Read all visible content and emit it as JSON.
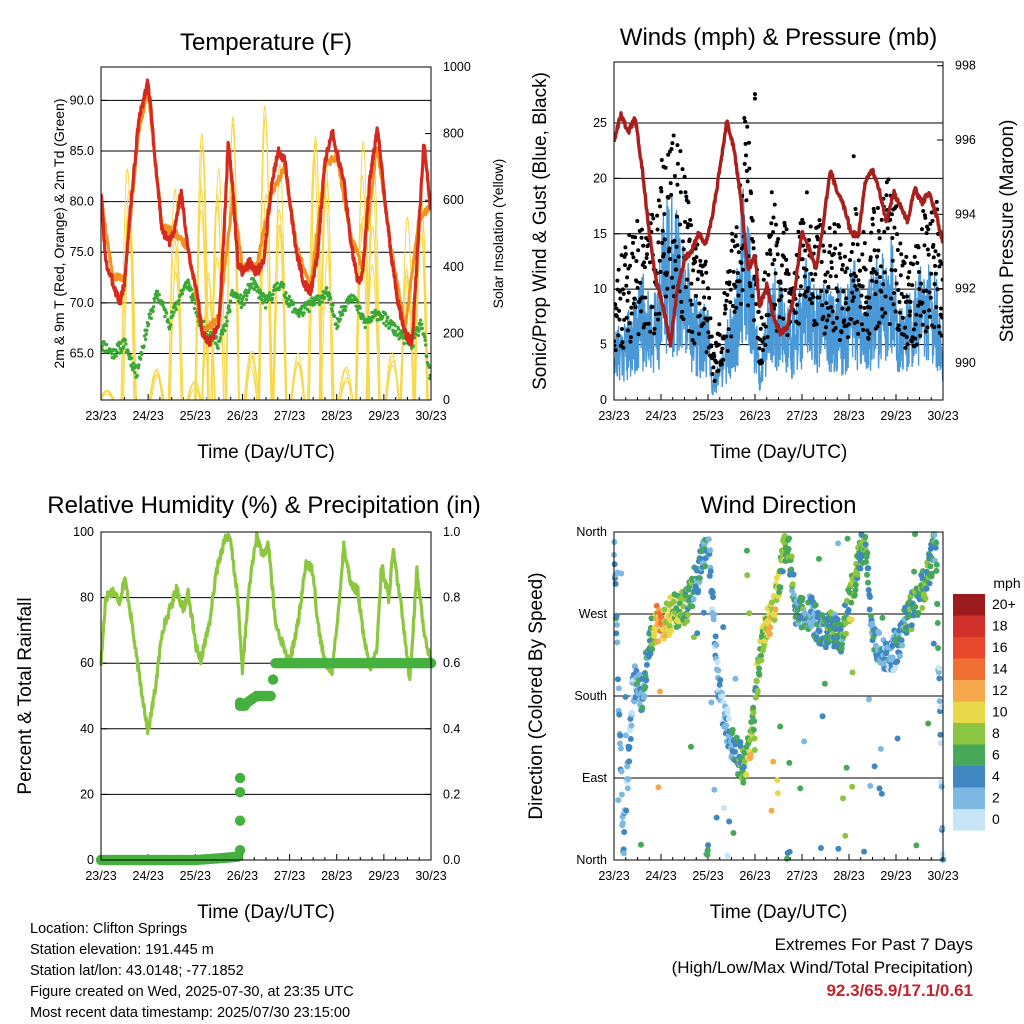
{
  "days": [
    "23/23",
    "24/23",
    "25/23",
    "26/23",
    "27/23",
    "28/23",
    "29/23",
    "30/23"
  ],
  "chart_data": [
    {
      "type": "line",
      "title": "Temperature (F)",
      "xlabel": "Time (Day/UTC)",
      "ylabel": "2m & 9m T (Red, Orange) & 2m Td (Green)",
      "y2label": "Solar Insolation (Yellow)",
      "ylim": [
        60.4,
        93.3
      ],
      "yticks": [
        "65.0",
        "70.0",
        "75.0",
        "80.0",
        "85.0",
        "90.0"
      ],
      "y2lim": [
        0,
        1000
      ],
      "y2ticks": [
        "0",
        "200",
        "400",
        "600",
        "800",
        "1000"
      ],
      "series": [
        {
          "name": "2m T",
          "color": "#d62a1e",
          "x": [
            0,
            0.1,
            0.25,
            0.4,
            0.5,
            0.6,
            0.8,
            1.0,
            1.15,
            1.3,
            1.45,
            1.55,
            1.7,
            1.85,
            2.0,
            2.15,
            2.3,
            2.5,
            2.6,
            2.7,
            2.8,
            2.9,
            3.0,
            3.15,
            3.3,
            3.45,
            3.6,
            3.75,
            3.9,
            4.0,
            4.15,
            4.3,
            4.45,
            4.6,
            4.75,
            4.9,
            5.0,
            5.15,
            5.3,
            5.45,
            5.55,
            5.7,
            5.85,
            5.9,
            6.0,
            6.15,
            6.3,
            6.45,
            6.6,
            6.75,
            6.85,
            7.0
          ],
          "y": [
            81,
            74,
            72,
            70,
            72,
            78,
            88,
            92,
            84,
            77,
            76,
            77,
            81,
            75,
            72,
            67,
            66,
            68,
            76,
            86,
            81,
            74,
            73,
            74,
            73,
            74,
            81,
            85,
            84,
            80,
            75,
            72,
            71,
            75,
            84,
            87,
            85,
            82,
            76,
            72,
            73,
            82,
            87,
            86,
            81,
            75,
            70,
            67,
            66,
            78,
            86,
            79
          ]
        },
        {
          "name": "9m T",
          "color": "#f19322",
          "x": [
            0,
            0.25,
            0.5,
            0.8,
            1.0,
            1.3,
            1.55,
            1.85,
            2.15,
            2.5,
            2.8,
            3.0,
            3.3,
            3.6,
            3.9,
            4.15,
            4.45,
            4.75,
            5.0,
            5.3,
            5.55,
            5.85,
            6.15,
            6.45,
            6.75,
            7.0
          ],
          "y": [
            80.5,
            72.5,
            72.5,
            87,
            91,
            77.5,
            77,
            75.5,
            67,
            68.5,
            80.5,
            73.5,
            73.5,
            80.5,
            83.5,
            75.5,
            71.5,
            83.5,
            84.5,
            76.5,
            73.5,
            85.5,
            75.5,
            67.5,
            78.5,
            79.5
          ]
        },
        {
          "name": "2m Td",
          "color": "#3aa835",
          "x": [
            0,
            0.25,
            0.5,
            0.75,
            1.0,
            1.2,
            1.45,
            1.7,
            1.85,
            2.1,
            2.3,
            2.5,
            2.65,
            2.8,
            3.0,
            3.2,
            3.5,
            3.8,
            4.0,
            4.2,
            4.5,
            4.8,
            5.0,
            5.3,
            5.6,
            5.9,
            6.1,
            6.3,
            6.6,
            6.8,
            7.0
          ],
          "y": [
            66,
            65,
            66,
            63,
            68,
            71,
            68,
            71,
            72,
            68,
            67,
            66,
            68,
            71,
            70,
            72,
            70,
            72,
            70,
            69,
            70,
            71,
            68,
            71,
            68,
            69,
            68,
            67,
            66,
            68,
            62
          ]
        },
        {
          "name": "Solar Insolation",
          "color": "#f7d84a",
          "axis": "y2",
          "x": [
            0.1,
            0.55,
            1.15,
            1.55,
            1.95,
            2.1,
            2.25,
            2.45,
            2.75,
            3.15,
            3.45,
            3.75,
            4.15,
            4.5,
            4.75,
            5.15,
            5.5,
            5.75,
            6.15,
            6.45,
            6.75
          ],
          "y": [
            30,
            700,
            100,
            640,
            60,
            920,
            380,
            780,
            900,
            150,
            960,
            820,
            160,
            860,
            700,
            100,
            840,
            730,
            180,
            620,
            800
          ]
        }
      ]
    },
    {
      "type": "scatter",
      "title": "Winds (mph) & Pressure (mb)",
      "xlabel": "Time (Day/UTC)",
      "ylabel": "Sonic/Prop Wind & Gust (Blue, Black)",
      "y2label": "Station Pressure (Maroon)",
      "ylim": [
        0,
        30.5
      ],
      "yticks": [
        "0",
        "5",
        "10",
        "15",
        "20",
        "25"
      ],
      "y2lim": [
        989.0,
        998.1
      ],
      "y2ticks": [
        "990",
        "992",
        "994",
        "996",
        "998"
      ],
      "series": [
        {
          "name": "Wind",
          "color": "#4a98d6",
          "x": [
            0,
            0.3,
            0.6,
            0.9,
            1.1,
            1.4,
            1.7,
            2.0,
            2.1,
            2.3,
            2.55,
            2.75,
            2.9,
            3.1,
            3.35,
            3.6,
            3.85,
            4.1,
            4.35,
            4.6,
            4.9,
            5.1,
            5.35,
            5.6,
            5.9,
            6.1,
            6.35,
            6.6,
            6.85,
            7.0
          ],
          "y": [
            4,
            5,
            7,
            6,
            12,
            10,
            6,
            5,
            1,
            3,
            6,
            12,
            10,
            2,
            8,
            6,
            5,
            8,
            6,
            7,
            6,
            8,
            6,
            8,
            9,
            6,
            6,
            8,
            7,
            3
          ]
        },
        {
          "name": "Gust",
          "color": "#000000",
          "x": [
            0,
            0.3,
            0.6,
            0.9,
            1.1,
            1.4,
            1.7,
            2.0,
            2.1,
            2.3,
            2.55,
            2.75,
            2.9,
            3.1,
            3.35,
            3.6,
            3.85,
            4.1,
            4.35,
            4.6,
            4.9,
            5.1,
            5.35,
            5.6,
            5.9,
            6.1,
            6.35,
            6.6,
            6.85,
            7.0
          ],
          "y": [
            8,
            11,
            13,
            12,
            20,
            17,
            11,
            9,
            3,
            6,
            12,
            19,
            18,
            5,
            14,
            12,
            10,
            14,
            12,
            13,
            11,
            13,
            11,
            14,
            15,
            11,
            9,
            13,
            14,
            8
          ]
        },
        {
          "name": "Pressure",
          "color": "#a8201e",
          "axis": "y2",
          "x": [
            0,
            0.15,
            0.3,
            0.45,
            0.6,
            0.75,
            0.9,
            1.05,
            1.2,
            1.35,
            1.5,
            1.65,
            1.8,
            1.95,
            2.1,
            2.25,
            2.4,
            2.55,
            2.7,
            2.85,
            3.0,
            3.1,
            3.25,
            3.4,
            3.55,
            3.7,
            3.85,
            4.0,
            4.15,
            4.3,
            4.45,
            4.6,
            4.75,
            4.9,
            5.05,
            5.2,
            5.35,
            5.5,
            5.65,
            5.8,
            5.95,
            6.1,
            6.25,
            6.4,
            6.55,
            6.7,
            6.85,
            7.0
          ],
          "y": [
            996.0,
            996.7,
            996.2,
            996.6,
            995.2,
            993.5,
            992.2,
            991.5,
            990.5,
            992.0,
            992.8,
            993.0,
            993.5,
            993.2,
            994.0,
            995.2,
            996.5,
            995.8,
            994.4,
            992.5,
            992.9,
            991.5,
            992.1,
            991.2,
            990.8,
            991.0,
            992.0,
            993.5,
            993.1,
            992.5,
            993.7,
            995.2,
            994.6,
            994.2,
            993.5,
            993.4,
            994.9,
            995.2,
            994.6,
            993.8,
            994.6,
            994.2,
            993.8,
            994.7,
            994.3,
            994.6,
            994.0,
            993.2
          ]
        }
      ]
    },
    {
      "type": "line",
      "title": "Relative Humidity (%) & Precipitation (in)",
      "xlabel": "Time (Day/UTC)",
      "ylabel": "Percent & Total Rainfall",
      "ylim": [
        0,
        100
      ],
      "yticks": [
        "0",
        "20",
        "40",
        "60",
        "80",
        "100"
      ],
      "y2lim": [
        0,
        1.0
      ],
      "y2ticks": [
        "0.0",
        "0.2",
        "0.4",
        "0.6",
        "0.8",
        "1.0"
      ],
      "series": [
        {
          "name": "Relative Humidity",
          "color": "#8dc63f",
          "x": [
            0,
            0.1,
            0.25,
            0.4,
            0.5,
            0.6,
            0.75,
            0.9,
            1.0,
            1.15,
            1.3,
            1.5,
            1.6,
            1.75,
            1.85,
            2.0,
            2.1,
            2.3,
            2.45,
            2.55,
            2.65,
            2.75,
            2.9,
            3.0,
            3.15,
            3.3,
            3.45,
            3.55,
            3.7,
            3.85,
            4.0,
            4.2,
            4.35,
            4.5,
            4.6,
            4.75,
            4.9,
            5.0,
            5.15,
            5.3,
            5.45,
            5.55,
            5.7,
            5.85,
            5.95,
            6.1,
            6.2,
            6.4,
            6.55,
            6.7,
            6.85,
            7.0
          ],
          "y": [
            60,
            80,
            82,
            79,
            86,
            78,
            62,
            48,
            39,
            52,
            70,
            78,
            83,
            76,
            82,
            66,
            60,
            72,
            88,
            94,
            99,
            97,
            80,
            58,
            84,
            99,
            92,
            97,
            72,
            66,
            60,
            74,
            91,
            88,
            72,
            60,
            58,
            70,
            96,
            84,
            82,
            70,
            58,
            64,
            90,
            80,
            94,
            74,
            55,
            88,
            70,
            60
          ]
        },
        {
          "name": "Total Precipitation",
          "color": "#45b03e",
          "axis": "y2",
          "x": [
            0,
            0.5,
            1.0,
            1.5,
            2.0,
            2.5,
            2.9,
            2.93,
            2.96,
            3.0,
            3.05,
            3.1,
            3.2,
            3.3,
            3.4,
            3.5,
            3.6,
            3.7,
            4.0,
            4.5,
            5.0,
            5.5,
            6.0,
            6.5,
            7.0
          ],
          "y": [
            0,
            0,
            0,
            0,
            0,
            0.005,
            0.01,
            0.12,
            0.25,
            0.47,
            0.47,
            0.48,
            0.49,
            0.5,
            0.5,
            0.5,
            0.5,
            0.6,
            0.6,
            0.6,
            0.6,
            0.6,
            0.6,
            0.6,
            0.6
          ]
        }
      ]
    },
    {
      "type": "scatter",
      "title": "Wind Direction",
      "xlabel": "Time (Day/UTC)",
      "ylabel": "Direction (Colored By Speed)",
      "yticks": [
        "North",
        "East",
        "South",
        "West",
        "North"
      ],
      "ylim": [
        0,
        360
      ],
      "colorbar": {
        "title": "mph",
        "labels": [
          "20+",
          "18",
          "16",
          "14",
          "12",
          "10",
          "8",
          "6",
          "4",
          "2",
          "0"
        ],
        "colors": [
          "#9c1b1c",
          "#d0312a",
          "#e6482b",
          "#f07034",
          "#f5a94c",
          "#e8d84a",
          "#8cc540",
          "#47a85a",
          "#3f87c1",
          "#7cb8e2",
          "#c6e4f6"
        ]
      },
      "series": [
        {
          "name": "Direction",
          "x": [
            0,
            0.2,
            0.4,
            0.5,
            0.6,
            0.8,
            0.9,
            1.0,
            1.1,
            1.2,
            1.4,
            1.6,
            1.7,
            1.9,
            2.0,
            2.2,
            2.3,
            2.45,
            2.55,
            2.7,
            2.8,
            2.9,
            3.0,
            3.1,
            3.2,
            3.35,
            3.5,
            3.6,
            3.7,
            3.9,
            4.0,
            4.2,
            4.3,
            4.5,
            4.6,
            4.8,
            5.0,
            5.1,
            5.2,
            5.35,
            5.5,
            5.7,
            5.9,
            6.0,
            6.2,
            6.4,
            6.6,
            6.75,
            6.85,
            7.0
          ],
          "y": [
            345,
            15,
            190,
            200,
            180,
            250,
            255,
            255,
            260,
            270,
            275,
            280,
            300,
            330,
            360,
            200,
            170,
            140,
            120,
            110,
            100,
            130,
            175,
            225,
            250,
            270,
            300,
            340,
            350,
            265,
            275,
            270,
            260,
            250,
            260,
            240,
            280,
            300,
            330,
            355,
            240,
            225,
            220,
            230,
            260,
            280,
            300,
            330,
            345,
            5
          ],
          "s": [
            4,
            4,
            3,
            4,
            5,
            6,
            12,
            13,
            11,
            10,
            8,
            7,
            6,
            5,
            5,
            2,
            3,
            4,
            6,
            7,
            8,
            10,
            8,
            8,
            10,
            11,
            9,
            8,
            7,
            5,
            6,
            4,
            5,
            7,
            6,
            5,
            8,
            9,
            7,
            6,
            5,
            4,
            3,
            4,
            6,
            8,
            7,
            6,
            5,
            3
          ]
        }
      ]
    }
  ],
  "info": {
    "location": "Location: Clifton Springs",
    "elevation": "Station elevation: 191.445 m",
    "latlon": "Station lat/lon: 43.0148; -77.1852",
    "created": "Figure created on Wed, 2025-07-30, at 23:35 UTC",
    "recent": "Most recent data timestamp: 2025/07/30 23:15:00"
  },
  "extremes": {
    "title": "Extremes For Past 7 Days",
    "subtitle": "(High/Low/Max Wind/Total Precipitation)",
    "values": "92.3/65.9/17.1/0.61"
  }
}
